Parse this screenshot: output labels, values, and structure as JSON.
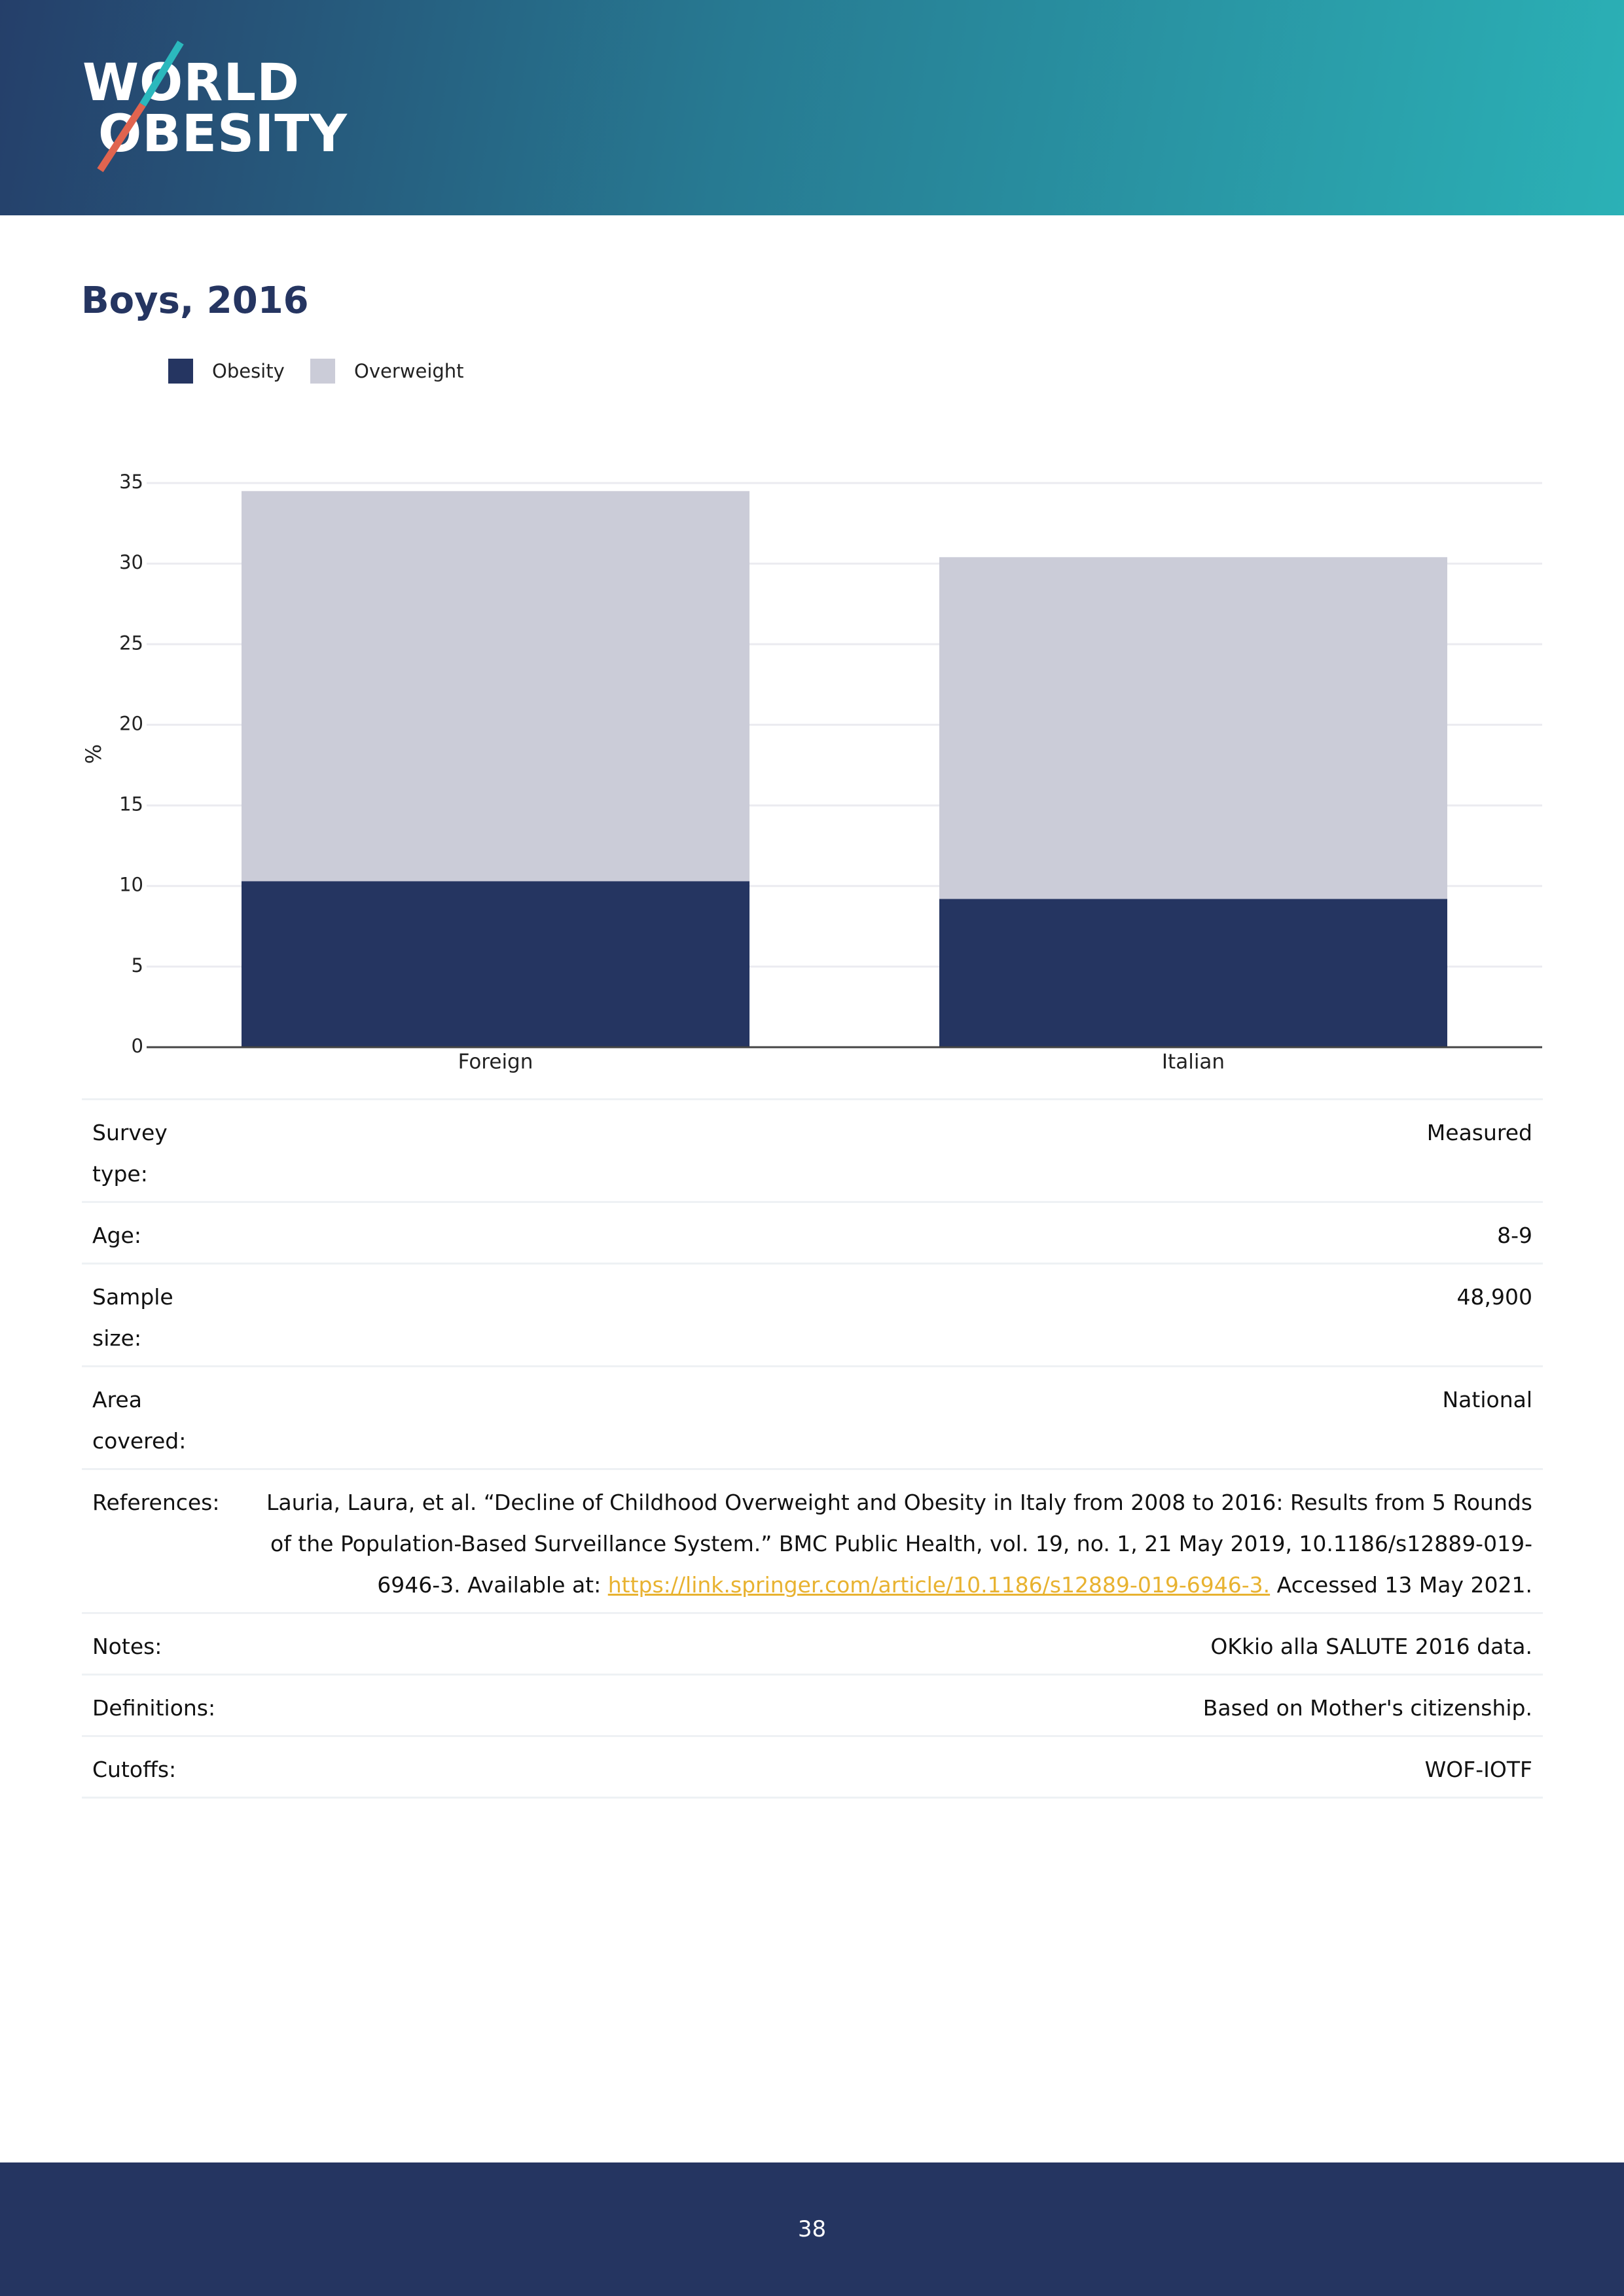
{
  "header": {
    "logo_line1": "WORLD",
    "logo_line2": "OBESITY"
  },
  "chart_data": {
    "type": "stacked_bar",
    "title": "Boys, 2016",
    "y_label": "%",
    "categories": [
      "Foreign",
      "Italian"
    ],
    "series": [
      {
        "name": "Obesity",
        "color": "#253561",
        "values": [
          10.3,
          9.2
        ]
      },
      {
        "name": "Overweight",
        "color": "#cbccd8",
        "values": [
          24.2,
          21.2
        ]
      }
    ],
    "ylim": [
      0,
      35
    ],
    "yticks": [
      0,
      5,
      10,
      15,
      20,
      25,
      30,
      35
    ],
    "grid": true,
    "legend": "top-left"
  },
  "table": {
    "rows": [
      [
        "Survey type:",
        "Measured"
      ],
      [
        "Age:",
        "8-9"
      ],
      [
        "Sample size:",
        "48,900"
      ],
      [
        "Area covered:",
        "National"
      ],
      [
        "References:",
        {
          "text": "Lauria, Laura, et al. “Decline of Childhood Overweight and Obesity in Italy from 2008 to 2016: Results from 5 Rounds of the Population-Based Surveillance System.” BMC Public Health, vol. 19, no. 1, 21 May 2019, 10.1186/s12889-019-6946-3. Available at:",
          "link": "https://link.springer.com/article/10.1186/s12889-019-6946-3.",
          "after": "Accessed 13 May 2021."
        }
      ],
      [
        "Notes:",
        "OKkio alla SALUTE 2016 data."
      ],
      [
        "Definitions:",
        "Based on Mother's citizenship."
      ],
      [
        "Cutoffs:",
        "WOF-IOTF"
      ]
    ]
  },
  "footer": {
    "page": "38"
  }
}
